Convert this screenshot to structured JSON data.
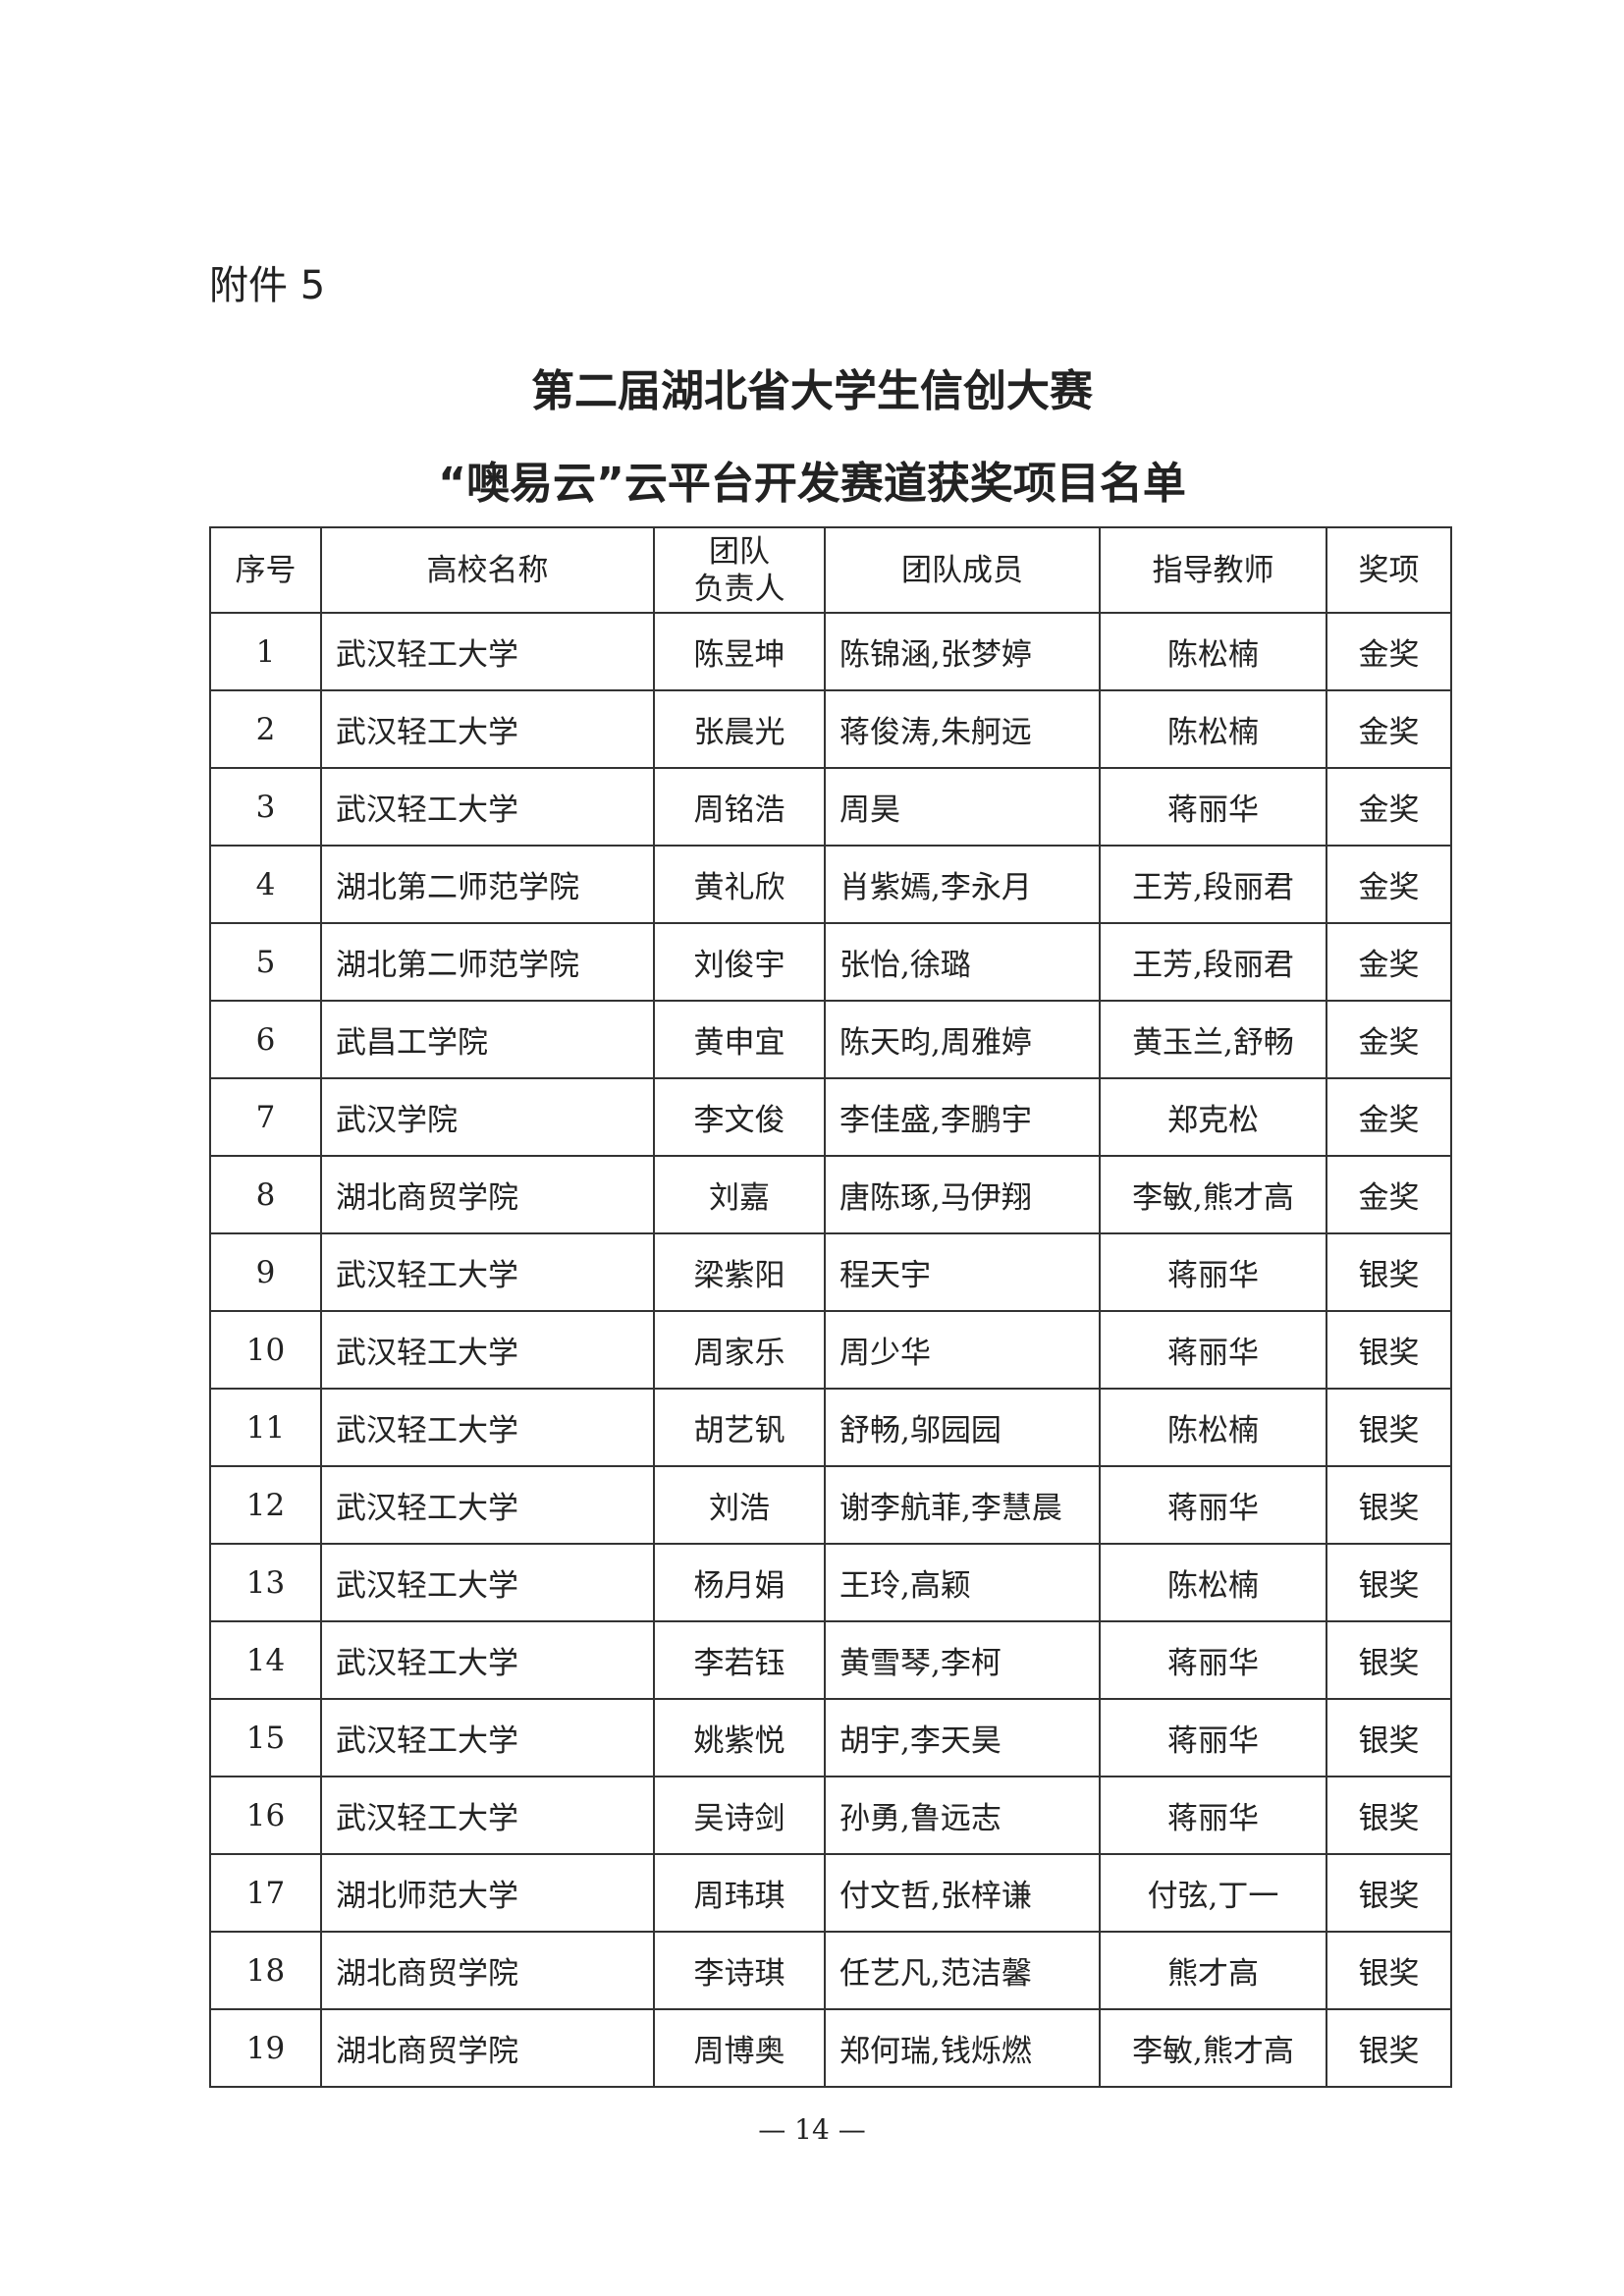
{
  "attachment_label": "附件 5",
  "title_line1": "第二届湖北省大学生信创大赛",
  "title_line2": "“噢易云”云平台开发赛道获奖项目名单",
  "table": {
    "headers": [
      "序号",
      "高校名称",
      "团队\n负责人",
      "团队成员",
      "指导教师",
      "奖项"
    ],
    "rows": [
      [
        "1",
        "武汉轻工大学",
        "陈昱坤",
        "陈锦涵,张梦婷",
        "陈松楠",
        "金奖"
      ],
      [
        "2",
        "武汉轻工大学",
        "张晨光",
        "蒋俊涛,朱舸远",
        "陈松楠",
        "金奖"
      ],
      [
        "3",
        "武汉轻工大学",
        "周铭浩",
        "周昊",
        "蒋丽华",
        "金奖"
      ],
      [
        "4",
        "湖北第二师范学院",
        "黄礼欣",
        "肖紫嫣,李永月",
        "王芳,段丽君",
        "金奖"
      ],
      [
        "5",
        "湖北第二师范学院",
        "刘俊宇",
        "张怡,徐璐",
        "王芳,段丽君",
        "金奖"
      ],
      [
        "6",
        "武昌工学院",
        "黄申宜",
        "陈天昀,周雅婷",
        "黄玉兰,舒畅",
        "金奖"
      ],
      [
        "7",
        "武汉学院",
        "李文俊",
        "李佳盛,李鹏宇",
        "郑克松",
        "金奖"
      ],
      [
        "8",
        "湖北商贸学院",
        "刘嘉",
        "唐陈琢,马伊翔",
        "李敏,熊才高",
        "金奖"
      ],
      [
        "9",
        "武汉轻工大学",
        "梁紫阳",
        "程天宇",
        "蒋丽华",
        "银奖"
      ],
      [
        "10",
        "武汉轻工大学",
        "周家乐",
        "周少华",
        "蒋丽华",
        "银奖"
      ],
      [
        "11",
        "武汉轻工大学",
        "胡艺钒",
        "舒畅,邬园园",
        "陈松楠",
        "银奖"
      ],
      [
        "12",
        "武汉轻工大学",
        "刘浩",
        "谢李航菲,李慧晨",
        "蒋丽华",
        "银奖"
      ],
      [
        "13",
        "武汉轻工大学",
        "杨月娟",
        "王玲,高颖",
        "陈松楠",
        "银奖"
      ],
      [
        "14",
        "武汉轻工大学",
        "李若钰",
        "黄雪琴,李柯",
        "蒋丽华",
        "银奖"
      ],
      [
        "15",
        "武汉轻工大学",
        "姚紫悦",
        "胡宇,李天昊",
        "蒋丽华",
        "银奖"
      ],
      [
        "16",
        "武汉轻工大学",
        "吴诗剑",
        "孙勇,鲁远志",
        "蒋丽华",
        "银奖"
      ],
      [
        "17",
        "湖北师范大学",
        "周玮琪",
        "付文哲,张梓谦",
        "付弦,丁一",
        "银奖"
      ],
      [
        "18",
        "湖北商贸学院",
        "李诗琪",
        "任艺凡,范洁馨",
        "熊才高",
        "银奖"
      ],
      [
        "19",
        "湖北商贸学院",
        "周博奥",
        "郑何瑞,钱烁燃",
        "李敏,熊才高",
        "银奖"
      ]
    ]
  },
  "page_number": "— 14 —"
}
